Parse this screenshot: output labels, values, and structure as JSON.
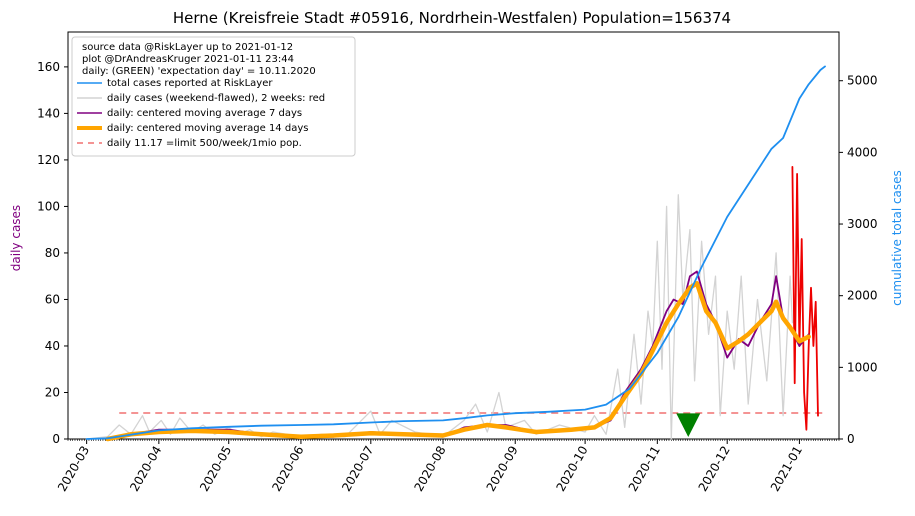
{
  "chart_data": {
    "type": "line",
    "title": "Herne (Kreisfreie Stadt #05916, Nordrhein-Westfalen) Population=156374",
    "ylabel_left": "daily cases",
    "ylabel_right": "cumulative total cases",
    "ylim_left": [
      0,
      175
    ],
    "ylim_right": [
      0,
      5680
    ],
    "yticks_left": [
      "0",
      "20",
      "40",
      "60",
      "80",
      "100",
      "120",
      "140",
      "160"
    ],
    "yticks_right": [
      "0",
      "1000",
      "2000",
      "3000",
      "4000",
      "5000"
    ],
    "xticks": [
      "2020-03",
      "2020-04",
      "2020-05",
      "2020-06",
      "2020-07",
      "2020-08",
      "2020-09",
      "2020-10",
      "2020-11",
      "2020-12",
      "2021-01"
    ],
    "legend": {
      "placement": "top-left",
      "header": [
        "source data @RiskLayer up to 2021-01-12",
        "plot @DrAndreasKruger 2021-01-11 23:44",
        "daily: (GREEN) 'expectation day' = 10.11.2020"
      ],
      "entries": [
        {
          "label": "total cases reported at RiskLayer",
          "color": "#1e8ff0",
          "style": "line"
        },
        {
          "label": "daily cases (weekend-flawed), 2 weeks: red",
          "color": "#d3d3d3",
          "style": "line"
        },
        {
          "label": "daily: centered moving average 7 days",
          "color": "#800080",
          "style": "line"
        },
        {
          "label": "daily: centered moving average 14 days",
          "color": "#ffa500",
          "style": "thick"
        },
        {
          "label": "daily 11.17 =limit 500/week/1mio pop.",
          "color": "#f07070",
          "style": "dashed"
        }
      ]
    },
    "limit_value": 11.17,
    "expectation_day": "2020-11-10",
    "series": [
      {
        "name": "total cases reported at RiskLayer",
        "axis": "right",
        "color": "#1e8ff0",
        "points": [
          [
            "2020-03-01",
            0
          ],
          [
            "2020-03-10",
            10
          ],
          [
            "2020-03-20",
            60
          ],
          [
            "2020-04-01",
            120
          ],
          [
            "2020-04-15",
            150
          ],
          [
            "2020-05-01",
            170
          ],
          [
            "2020-05-15",
            185
          ],
          [
            "2020-06-01",
            195
          ],
          [
            "2020-06-15",
            205
          ],
          [
            "2020-07-01",
            230
          ],
          [
            "2020-07-15",
            250
          ],
          [
            "2020-08-01",
            260
          ],
          [
            "2020-08-10",
            290
          ],
          [
            "2020-08-20",
            330
          ],
          [
            "2020-09-01",
            360
          ],
          [
            "2020-09-15",
            380
          ],
          [
            "2020-10-01",
            410
          ],
          [
            "2020-10-10",
            480
          ],
          [
            "2020-10-20",
            700
          ],
          [
            "2020-11-01",
            1200
          ],
          [
            "2020-11-10",
            1700
          ],
          [
            "2020-11-20",
            2400
          ],
          [
            "2020-12-01",
            3100
          ],
          [
            "2020-12-10",
            3550
          ],
          [
            "2020-12-20",
            4050
          ],
          [
            "2020-12-25",
            4200
          ],
          [
            "2021-01-01",
            4750
          ],
          [
            "2021-01-05",
            4950
          ],
          [
            "2021-01-10",
            5150
          ],
          [
            "2021-01-12",
            5200
          ]
        ]
      },
      {
        "name": "daily cases (weekend-flawed), 2 weeks: red",
        "axis": "left",
        "color": "#d3d3d3",
        "points": [
          [
            "2020-03-01",
            0
          ],
          [
            "2020-03-10",
            1
          ],
          [
            "2020-03-15",
            6
          ],
          [
            "2020-03-20",
            2
          ],
          [
            "2020-03-25",
            10
          ],
          [
            "2020-03-28",
            3
          ],
          [
            "2020-04-02",
            8
          ],
          [
            "2020-04-06",
            2
          ],
          [
            "2020-04-10",
            9
          ],
          [
            "2020-04-15",
            3
          ],
          [
            "2020-04-20",
            6
          ],
          [
            "2020-04-25",
            2
          ],
          [
            "2020-05-01",
            5
          ],
          [
            "2020-05-05",
            2
          ],
          [
            "2020-05-10",
            4
          ],
          [
            "2020-05-15",
            1
          ],
          [
            "2020-05-20",
            3
          ],
          [
            "2020-06-01",
            1
          ],
          [
            "2020-06-10",
            2
          ],
          [
            "2020-06-20",
            1
          ],
          [
            "2020-07-01",
            12
          ],
          [
            "2020-07-05",
            2
          ],
          [
            "2020-07-10",
            8
          ],
          [
            "2020-07-20",
            3
          ],
          [
            "2020-08-01",
            1
          ],
          [
            "2020-08-10",
            8
          ],
          [
            "2020-08-15",
            15
          ],
          [
            "2020-08-20",
            3
          ],
          [
            "2020-08-25",
            20
          ],
          [
            "2020-08-28",
            5
          ],
          [
            "2020-09-05",
            8
          ],
          [
            "2020-09-10",
            2
          ],
          [
            "2020-09-20",
            6
          ],
          [
            "2020-10-01",
            3
          ],
          [
            "2020-10-05",
            10
          ],
          [
            "2020-10-10",
            2
          ],
          [
            "2020-10-15",
            30
          ],
          [
            "2020-10-18",
            5
          ],
          [
            "2020-10-22",
            45
          ],
          [
            "2020-10-25",
            15
          ],
          [
            "2020-10-28",
            55
          ],
          [
            "2020-10-30",
            40
          ],
          [
            "2020-11-01",
            85
          ],
          [
            "2020-11-03",
            30
          ],
          [
            "2020-11-05",
            100
          ],
          [
            "2020-11-07",
            0
          ],
          [
            "2020-11-10",
            105
          ],
          [
            "2020-11-12",
            60
          ],
          [
            "2020-11-15",
            90
          ],
          [
            "2020-11-17",
            25
          ],
          [
            "2020-11-20",
            85
          ],
          [
            "2020-11-23",
            45
          ],
          [
            "2020-11-26",
            70
          ],
          [
            "2020-11-28",
            10
          ],
          [
            "2020-12-01",
            55
          ],
          [
            "2020-12-04",
            30
          ],
          [
            "2020-12-07",
            70
          ],
          [
            "2020-12-10",
            15
          ],
          [
            "2020-12-14",
            60
          ],
          [
            "2020-12-18",
            25
          ],
          [
            "2020-12-22",
            80
          ],
          [
            "2020-12-25",
            10
          ],
          [
            "2020-12-28",
            70
          ],
          [
            "2020-12-29",
            50
          ]
        ]
      },
      {
        "name": "daily cases (last 2 weeks)",
        "axis": "left",
        "color": "#ee0000",
        "points": [
          [
            "2020-12-29",
            117
          ],
          [
            "2020-12-30",
            24
          ],
          [
            "2020-12-31",
            114
          ],
          [
            "2021-01-01",
            40
          ],
          [
            "2021-01-02",
            86
          ],
          [
            "2021-01-03",
            20
          ],
          [
            "2021-01-04",
            4
          ],
          [
            "2021-01-05",
            40
          ],
          [
            "2021-01-06",
            65
          ],
          [
            "2021-01-07",
            40
          ],
          [
            "2021-01-08",
            59
          ],
          [
            "2021-01-09",
            10
          ]
        ]
      },
      {
        "name": "daily: centered moving average 7 days",
        "axis": "left",
        "color": "#800080",
        "points": [
          [
            "2020-03-10",
            0
          ],
          [
            "2020-03-20",
            2
          ],
          [
            "2020-04-01",
            4
          ],
          [
            "2020-04-15",
            4
          ],
          [
            "2020-05-01",
            4
          ],
          [
            "2020-05-15",
            2
          ],
          [
            "2020-06-01",
            1
          ],
          [
            "2020-06-15",
            1
          ],
          [
            "2020-07-01",
            3
          ],
          [
            "2020-07-15",
            2
          ],
          [
            "2020-08-01",
            1
          ],
          [
            "2020-08-10",
            5
          ],
          [
            "2020-08-20",
            6
          ],
          [
            "2020-08-28",
            6
          ],
          [
            "2020-09-10",
            3
          ],
          [
            "2020-09-25",
            4
          ],
          [
            "2020-10-05",
            5
          ],
          [
            "2020-10-12",
            8
          ],
          [
            "2020-10-18",
            20
          ],
          [
            "2020-10-25",
            30
          ],
          [
            "2020-10-30",
            40
          ],
          [
            "2020-11-05",
            55
          ],
          [
            "2020-11-08",
            60
          ],
          [
            "2020-11-12",
            58
          ],
          [
            "2020-11-15",
            70
          ],
          [
            "2020-11-18",
            72
          ],
          [
            "2020-11-22",
            58
          ],
          [
            "2020-11-26",
            50
          ],
          [
            "2020-12-01",
            35
          ],
          [
            "2020-12-06",
            43
          ],
          [
            "2020-12-10",
            40
          ],
          [
            "2020-12-15",
            50
          ],
          [
            "2020-12-20",
            58
          ],
          [
            "2020-12-22",
            70
          ],
          [
            "2020-12-25",
            52
          ],
          [
            "2020-12-28",
            48
          ],
          [
            "2021-01-01",
            40
          ],
          [
            "2021-01-05",
            45
          ]
        ]
      },
      {
        "name": "daily: centered moving average 14 days",
        "axis": "left",
        "color": "#ffa500",
        "points": [
          [
            "2020-03-10",
            0
          ],
          [
            "2020-03-20",
            2
          ],
          [
            "2020-04-01",
            3
          ],
          [
            "2020-04-15",
            3.5
          ],
          [
            "2020-05-01",
            3
          ],
          [
            "2020-05-15",
            2
          ],
          [
            "2020-06-01",
            1
          ],
          [
            "2020-06-15",
            1.5
          ],
          [
            "2020-07-01",
            2.5
          ],
          [
            "2020-07-15",
            2
          ],
          [
            "2020-08-01",
            1.5
          ],
          [
            "2020-08-10",
            4
          ],
          [
            "2020-08-20",
            6
          ],
          [
            "2020-08-28",
            5
          ],
          [
            "2020-09-10",
            3
          ],
          [
            "2020-09-25",
            4
          ],
          [
            "2020-10-05",
            5
          ],
          [
            "2020-10-12",
            9
          ],
          [
            "2020-10-18",
            18
          ],
          [
            "2020-10-25",
            28
          ],
          [
            "2020-10-30",
            38
          ],
          [
            "2020-11-05",
            50
          ],
          [
            "2020-11-10",
            58
          ],
          [
            "2020-11-15",
            65
          ],
          [
            "2020-11-18",
            67
          ],
          [
            "2020-11-22",
            55
          ],
          [
            "2020-11-26",
            50
          ],
          [
            "2020-12-01",
            39
          ],
          [
            "2020-12-06",
            42
          ],
          [
            "2020-12-10",
            45
          ],
          [
            "2020-12-15",
            50
          ],
          [
            "2020-12-20",
            55
          ],
          [
            "2020-12-22",
            59
          ],
          [
            "2020-12-25",
            52
          ],
          [
            "2020-12-28",
            48
          ],
          [
            "2021-01-01",
            42
          ],
          [
            "2021-01-05",
            44
          ]
        ]
      }
    ]
  }
}
